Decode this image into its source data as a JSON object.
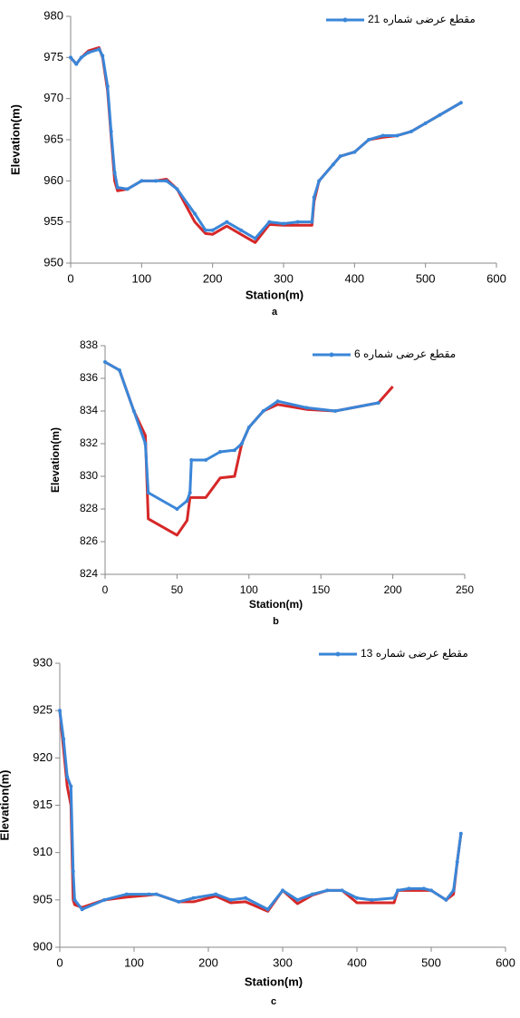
{
  "chart_data": [
    {
      "type": "line",
      "xlabel": "Station(m)",
      "ylabel": "Elevation(m)",
      "caption": "a",
      "x": [
        0,
        8,
        15,
        25,
        40,
        45,
        52,
        57,
        62,
        66,
        80,
        100,
        120,
        135,
        150,
        175,
        190,
        200,
        220,
        240,
        260,
        280,
        300,
        320,
        340,
        343,
        350,
        370,
        380,
        400,
        420,
        440,
        460,
        480,
        500,
        520,
        550
      ],
      "series": [
        {
          "color": "#d62828",
          "values": [
            975,
            974.2,
            975,
            975.8,
            976.2,
            975,
            971,
            965.5,
            960,
            958.8,
            959,
            960,
            960,
            960.2,
            959,
            955,
            953.6,
            953.5,
            954.5,
            953.5,
            952.5,
            954.7,
            954.6,
            954.6,
            954.6,
            957.5,
            960,
            962,
            963,
            963.5,
            965,
            965.3,
            965.5,
            966,
            967,
            968,
            969.5
          ]
        },
        {
          "name": "مقطع عرضی شماره 21",
          "color": "#3a86d8",
          "marker": "circle",
          "values": [
            975,
            974.2,
            975,
            975.6,
            976,
            975.2,
            971.5,
            966,
            961,
            959.2,
            959,
            960,
            960,
            960,
            959,
            956,
            954,
            954,
            955,
            954,
            953,
            955,
            954.8,
            955,
            955,
            958,
            960,
            962,
            963,
            963.5,
            965,
            965.5,
            965.5,
            966,
            967,
            968,
            969.5
          ]
        }
      ],
      "xlim": [
        0,
        600
      ],
      "xticks": [
        0,
        100,
        200,
        300,
        400,
        500,
        600
      ],
      "ylim": [
        950,
        980
      ],
      "yticks": [
        950,
        955,
        960,
        965,
        970,
        975,
        980
      ]
    },
    {
      "type": "line",
      "xlabel": "Station(m)",
      "ylabel": "Elevation(m)",
      "caption": "b",
      "x": [
        0,
        10,
        20,
        28,
        30,
        50,
        57,
        59,
        60,
        70,
        80,
        90,
        95,
        100,
        110,
        120,
        140,
        160,
        190,
        200
      ],
      "series": [
        {
          "color": "#d62828",
          "values": [
            837,
            836.5,
            834,
            832.5,
            827.4,
            826.4,
            827.3,
            828.7,
            828.7,
            828.7,
            829.9,
            830,
            832,
            833,
            834,
            834.4,
            834.1,
            834,
            834.5,
            835.5
          ]
        },
        {
          "name": "مقطع عرضی شماره 6",
          "color": "#3a86d8",
          "marker": "circle",
          "values": [
            837,
            836.5,
            834,
            832,
            829,
            828,
            828.5,
            829,
            831,
            831,
            831.5,
            831.6,
            832,
            833,
            834,
            834.6,
            834.2,
            834,
            834.5,
            null
          ]
        }
      ],
      "xlim": [
        0,
        250
      ],
      "xticks": [
        0,
        50,
        100,
        150,
        200,
        250
      ],
      "ylim": [
        824,
        838
      ],
      "yticks": [
        824,
        826,
        828,
        830,
        832,
        834,
        836,
        838
      ]
    },
    {
      "type": "line",
      "xlabel": "Station(m)",
      "ylabel": "Elevation(m)",
      "caption": "c",
      "x": [
        0,
        5,
        10,
        15,
        18,
        20,
        30,
        60,
        90,
        120,
        130,
        160,
        180,
        210,
        230,
        250,
        280,
        300,
        320,
        340,
        360,
        380,
        400,
        420,
        450,
        455,
        470,
        490,
        500,
        520,
        530,
        535,
        540
      ],
      "series": [
        {
          "color": "#d62828",
          "values": [
            925,
            921,
            917,
            915,
            905,
            904.5,
            904.2,
            905,
            905.3,
            905.5,
            905.6,
            904.8,
            904.8,
            905.4,
            904.7,
            904.8,
            903.8,
            906,
            904.6,
            905.5,
            906,
            906,
            904.7,
            904.7,
            904.7,
            906,
            906,
            906,
            906,
            905,
            905.6,
            909,
            912
          ]
        },
        {
          "name": "مقطع عرضی شماره 13",
          "color": "#3a86d8",
          "marker": "circle",
          "values": [
            925,
            922,
            918,
            917,
            908,
            905,
            904,
            905,
            905.6,
            905.6,
            905.6,
            904.8,
            905.2,
            905.6,
            905,
            905.2,
            904,
            906,
            905,
            905.6,
            906,
            906,
            905.2,
            905,
            905.2,
            906,
            906.2,
            906.2,
            906,
            905,
            906,
            909,
            912
          ]
        }
      ],
      "xlim": [
        0,
        600
      ],
      "xticks": [
        0,
        100,
        200,
        300,
        400,
        500,
        600
      ],
      "ylim": [
        900,
        930
      ],
      "yticks": [
        900,
        905,
        910,
        915,
        920,
        925,
        930
      ]
    }
  ]
}
